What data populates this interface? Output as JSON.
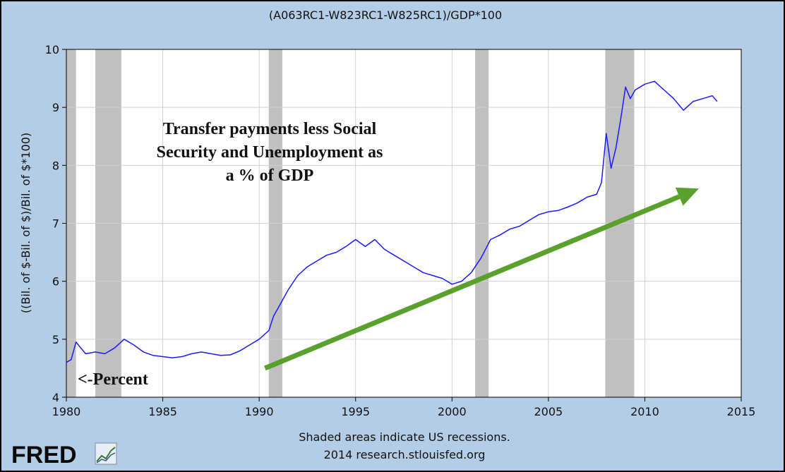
{
  "chart_data": {
    "type": "line",
    "title": "(A063RC1-W823RC1-W825RC1)/GDP*100",
    "ylabel": "((Bil. of $-Bil. of $)/Bil. of $*100)",
    "xlabel": "",
    "xlim": [
      1980,
      2015
    ],
    "ylim": [
      4,
      10
    ],
    "x_ticks": [
      1980,
      1985,
      1990,
      1995,
      2000,
      2005,
      2010,
      2015
    ],
    "y_ticks": [
      4,
      5,
      6,
      7,
      8,
      9,
      10
    ],
    "grid": true,
    "recessions": [
      [
        1980.0,
        1980.5
      ],
      [
        1981.5,
        1982.85
      ],
      [
        1990.5,
        1991.2
      ],
      [
        2001.2,
        2001.9
      ],
      [
        2007.95,
        2009.45
      ]
    ],
    "series": [
      {
        "name": "Transfer payments less Social Security and Unemployment as % of GDP",
        "color": "#1a1aff",
        "x": [
          1980.0,
          1980.25,
          1980.5,
          1980.75,
          1981.0,
          1981.5,
          1982.0,
          1982.5,
          1983.0,
          1983.5,
          1984.0,
          1984.5,
          1985.0,
          1985.5,
          1986.0,
          1986.5,
          1987.0,
          1987.5,
          1988.0,
          1988.5,
          1989.0,
          1989.5,
          1990.0,
          1990.5,
          1990.75,
          1991.0,
          1991.5,
          1992.0,
          1992.5,
          1993.0,
          1993.5,
          1994.0,
          1994.5,
          1995.0,
          1995.5,
          1996.0,
          1996.5,
          1997.0,
          1997.5,
          1998.0,
          1998.5,
          1999.0,
          1999.5,
          2000.0,
          2000.5,
          2001.0,
          2001.5,
          2002.0,
          2002.5,
          2003.0,
          2003.5,
          2004.0,
          2004.5,
          2005.0,
          2005.5,
          2006.0,
          2006.5,
          2007.0,
          2007.5,
          2007.75,
          2008.0,
          2008.25,
          2008.5,
          2008.75,
          2009.0,
          2009.25,
          2009.5,
          2010.0,
          2010.5,
          2011.0,
          2011.5,
          2012.0,
          2012.5,
          2013.0,
          2013.5,
          2013.75
        ],
        "values": [
          4.6,
          4.65,
          4.95,
          4.85,
          4.75,
          4.78,
          4.75,
          4.85,
          5.0,
          4.9,
          4.78,
          4.72,
          4.7,
          4.68,
          4.7,
          4.75,
          4.78,
          4.75,
          4.72,
          4.73,
          4.8,
          4.9,
          5.0,
          5.15,
          5.4,
          5.55,
          5.85,
          6.1,
          6.25,
          6.35,
          6.45,
          6.5,
          6.6,
          6.72,
          6.6,
          6.72,
          6.55,
          6.45,
          6.35,
          6.25,
          6.15,
          6.1,
          6.05,
          5.95,
          6.0,
          6.15,
          6.4,
          6.72,
          6.8,
          6.9,
          6.95,
          7.05,
          7.15,
          7.2,
          7.22,
          7.28,
          7.35,
          7.45,
          7.5,
          7.7,
          8.55,
          7.95,
          8.3,
          8.8,
          9.35,
          9.15,
          9.3,
          9.4,
          9.45,
          9.3,
          9.15,
          8.95,
          9.1,
          9.15,
          9.2,
          9.1
        ]
      }
    ],
    "annotations": {
      "title_lines": [
        "Transfer payments less Social",
        "Security and Unemployment as",
        "a % of GDP"
      ],
      "percent_label": "<-Percent",
      "trend_arrow": {
        "from": [
          1990.3,
          4.5
        ],
        "to": [
          2012.8,
          7.6
        ],
        "color": "#5aa02c"
      }
    },
    "footer": [
      "Shaded areas indicate US recessions.",
      "2014 research.stlouisfed.org"
    ]
  },
  "logo": {
    "text": "FRED"
  },
  "colors": {
    "background": "#b4cde6",
    "plot_background": "#ffffff",
    "recession": "#c0c0c0",
    "line": "#1a1aff",
    "arrow": "#5aa02c",
    "grid": "#d0d0d0"
  }
}
